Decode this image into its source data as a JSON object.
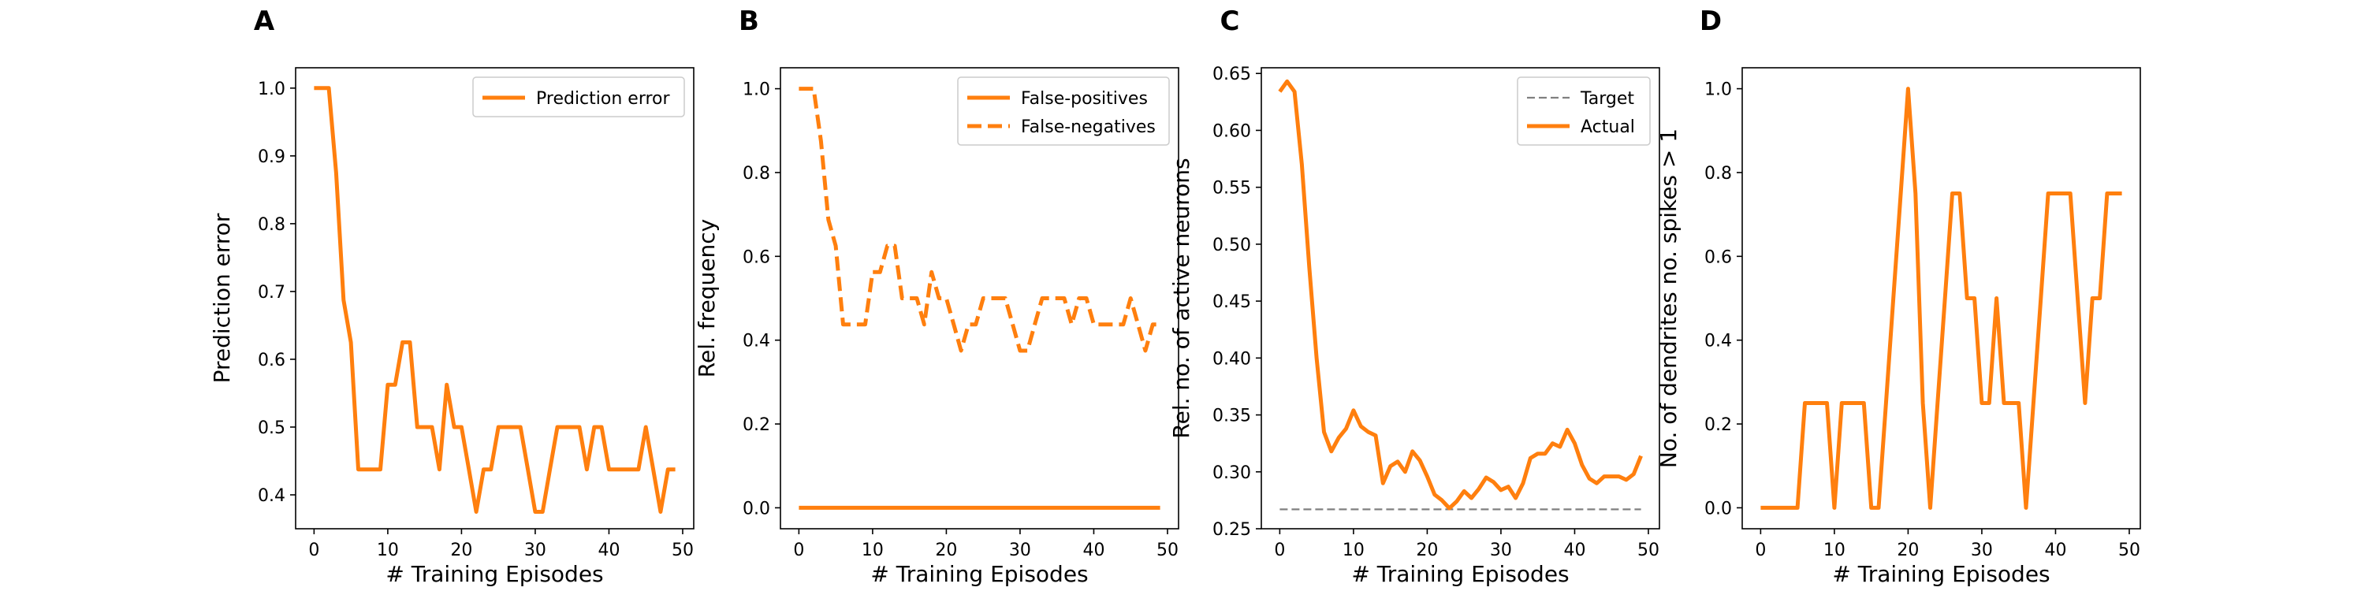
{
  "colors": {
    "series": "#ff7f0e",
    "target": "#808080",
    "axis": "#000000",
    "legend_border": "#cccccc"
  },
  "chart_data": [
    {
      "panel": "A",
      "type": "line",
      "xlabel": "# Training Episodes",
      "ylabel": "Prediction error",
      "xlim": [
        -2.5,
        51.5
      ],
      "ylim": [
        0.35,
        1.03
      ],
      "xticks": [
        0,
        10,
        20,
        30,
        40,
        50
      ],
      "yticks": [
        0.4,
        0.5,
        0.6,
        0.7,
        0.8,
        0.9,
        1.0
      ],
      "ytick_labels": [
        "0.4",
        "0.5",
        "0.6",
        "0.7",
        "0.8",
        "0.9",
        "1.0"
      ],
      "legend": {
        "position": "top-right"
      },
      "series": [
        {
          "name": "Prediction error",
          "style": "solid",
          "color": "#ff7f0e",
          "x": [
            0,
            1,
            2,
            3,
            4,
            5,
            6,
            7,
            8,
            9,
            10,
            11,
            12,
            13,
            14,
            15,
            16,
            17,
            18,
            19,
            20,
            21,
            22,
            23,
            24,
            25,
            26,
            27,
            28,
            29,
            30,
            31,
            32,
            33,
            34,
            35,
            36,
            37,
            38,
            39,
            40,
            41,
            42,
            43,
            44,
            45,
            46,
            47,
            48,
            49
          ],
          "y": [
            1.0,
            1.0,
            1.0,
            0.875,
            0.6875,
            0.625,
            0.4375,
            0.4375,
            0.4375,
            0.4375,
            0.5625,
            0.5625,
            0.625,
            0.625,
            0.5,
            0.5,
            0.5,
            0.4375,
            0.5625,
            0.5,
            0.5,
            0.4375,
            0.375,
            0.4375,
            0.4375,
            0.5,
            0.5,
            0.5,
            0.5,
            0.4375,
            0.375,
            0.375,
            0.4375,
            0.5,
            0.5,
            0.5,
            0.5,
            0.4375,
            0.5,
            0.5,
            0.4375,
            0.4375,
            0.4375,
            0.4375,
            0.4375,
            0.5,
            0.4375,
            0.375,
            0.4375,
            0.4375
          ]
        }
      ]
    },
    {
      "panel": "B",
      "type": "line",
      "xlabel": "# Training Episodes",
      "ylabel": "Rel. frequency",
      "xlim": [
        -2.5,
        51.5
      ],
      "ylim": [
        -0.05,
        1.05
      ],
      "xticks": [
        0,
        10,
        20,
        30,
        40,
        50
      ],
      "yticks": [
        0.0,
        0.2,
        0.4,
        0.6,
        0.8,
        1.0
      ],
      "ytick_labels": [
        "0.0",
        "0.2",
        "0.4",
        "0.6",
        "0.8",
        "1.0"
      ],
      "legend": {
        "position": "top-right"
      },
      "series": [
        {
          "name": "False-positives",
          "style": "solid",
          "color": "#ff7f0e",
          "x": [
            0,
            49
          ],
          "y": [
            0.0,
            0.0
          ]
        },
        {
          "name": "False-negatives",
          "style": "dashed",
          "color": "#ff7f0e",
          "x": [
            0,
            1,
            2,
            3,
            4,
            5,
            6,
            7,
            8,
            9,
            10,
            11,
            12,
            13,
            14,
            15,
            16,
            17,
            18,
            19,
            20,
            21,
            22,
            23,
            24,
            25,
            26,
            27,
            28,
            29,
            30,
            31,
            32,
            33,
            34,
            35,
            36,
            37,
            38,
            39,
            40,
            41,
            42,
            43,
            44,
            45,
            46,
            47,
            48,
            49
          ],
          "y": [
            1.0,
            1.0,
            1.0,
            0.875,
            0.6875,
            0.625,
            0.4375,
            0.4375,
            0.4375,
            0.4375,
            0.5625,
            0.5625,
            0.625,
            0.625,
            0.5,
            0.5,
            0.5,
            0.4375,
            0.5625,
            0.5,
            0.5,
            0.4375,
            0.375,
            0.4375,
            0.4375,
            0.5,
            0.5,
            0.5,
            0.5,
            0.4375,
            0.375,
            0.375,
            0.4375,
            0.5,
            0.5,
            0.5,
            0.5,
            0.4375,
            0.5,
            0.5,
            0.4375,
            0.4375,
            0.4375,
            0.4375,
            0.4375,
            0.5,
            0.4375,
            0.375,
            0.4375,
            0.4375
          ]
        }
      ]
    },
    {
      "panel": "C",
      "type": "line",
      "xlabel": "# Training Episodes",
      "ylabel": "Rel. no. of active neurons",
      "xlim": [
        -2.5,
        51.5
      ],
      "ylim": [
        0.25,
        0.655
      ],
      "xticks": [
        0,
        10,
        20,
        30,
        40,
        50
      ],
      "yticks": [
        0.25,
        0.3,
        0.35,
        0.4,
        0.45,
        0.5,
        0.55,
        0.6,
        0.65
      ],
      "ytick_labels": [
        "0.25",
        "0.30",
        "0.35",
        "0.40",
        "0.45",
        "0.50",
        "0.55",
        "0.60",
        "0.65"
      ],
      "legend": {
        "position": "top-right"
      },
      "series": [
        {
          "name": "Target",
          "style": "dashed",
          "color": "#808080",
          "x": [
            0,
            49
          ],
          "y": [
            0.267,
            0.267
          ]
        },
        {
          "name": "Actual",
          "style": "solid",
          "color": "#ff7f0e",
          "x": [
            0,
            1,
            2,
            3,
            4,
            5,
            6,
            7,
            8,
            9,
            10,
            11,
            12,
            13,
            14,
            15,
            16,
            17,
            18,
            19,
            20,
            21,
            22,
            23,
            24,
            25,
            26,
            27,
            28,
            29,
            30,
            31,
            32,
            33,
            34,
            35,
            36,
            37,
            38,
            39,
            40,
            41,
            42,
            43,
            44,
            45,
            46,
            47,
            48,
            49
          ],
          "y": [
            0.634,
            0.643,
            0.634,
            0.57,
            0.48,
            0.4,
            0.335,
            0.318,
            0.33,
            0.338,
            0.354,
            0.34,
            0.335,
            0.332,
            0.29,
            0.305,
            0.309,
            0.3,
            0.318,
            0.31,
            0.296,
            0.28,
            0.275,
            0.268,
            0.274,
            0.283,
            0.277,
            0.285,
            0.295,
            0.291,
            0.284,
            0.287,
            0.277,
            0.29,
            0.312,
            0.316,
            0.316,
            0.325,
            0.322,
            0.337,
            0.325,
            0.306,
            0.294,
            0.29,
            0.296,
            0.296,
            0.296,
            0.293,
            0.298,
            0.314
          ]
        }
      ]
    },
    {
      "panel": "D",
      "type": "line",
      "xlabel": "# Training Episodes",
      "ylabel": "No. of dendrites no. spikes > 1",
      "xlim": [
        -2.5,
        51.5
      ],
      "ylim": [
        -0.05,
        1.05
      ],
      "xticks": [
        0,
        10,
        20,
        30,
        40,
        50
      ],
      "yticks": [
        0.0,
        0.2,
        0.4,
        0.6,
        0.8,
        1.0
      ],
      "ytick_labels": [
        "0.0",
        "0.2",
        "0.4",
        "0.6",
        "0.8",
        "1.0"
      ],
      "series": [
        {
          "name": "",
          "style": "solid",
          "color": "#ff7f0e",
          "x": [
            0,
            1,
            2,
            3,
            4,
            5,
            6,
            7,
            8,
            9,
            10,
            11,
            12,
            13,
            14,
            15,
            16,
            17,
            18,
            19,
            20,
            21,
            22,
            23,
            24,
            25,
            26,
            27,
            28,
            29,
            30,
            31,
            32,
            33,
            34,
            35,
            36,
            37,
            38,
            39,
            40,
            41,
            42,
            43,
            44,
            45,
            46,
            47,
            48,
            49
          ],
          "y": [
            0,
            0,
            0,
            0,
            0,
            0,
            0.25,
            0.25,
            0.25,
            0.25,
            0,
            0.25,
            0.25,
            0.25,
            0.25,
            0,
            0,
            0.25,
            0.5,
            0.75,
            1.0,
            0.75,
            0.25,
            0,
            0.25,
            0.5,
            0.75,
            0.75,
            0.5,
            0.5,
            0.25,
            0.25,
            0.5,
            0.25,
            0.25,
            0.25,
            0,
            0.25,
            0.5,
            0.75,
            0.75,
            0.75,
            0.75,
            0.5,
            0.25,
            0.5,
            0.5,
            0.75,
            0.75,
            0.75
          ]
        }
      ]
    }
  ]
}
